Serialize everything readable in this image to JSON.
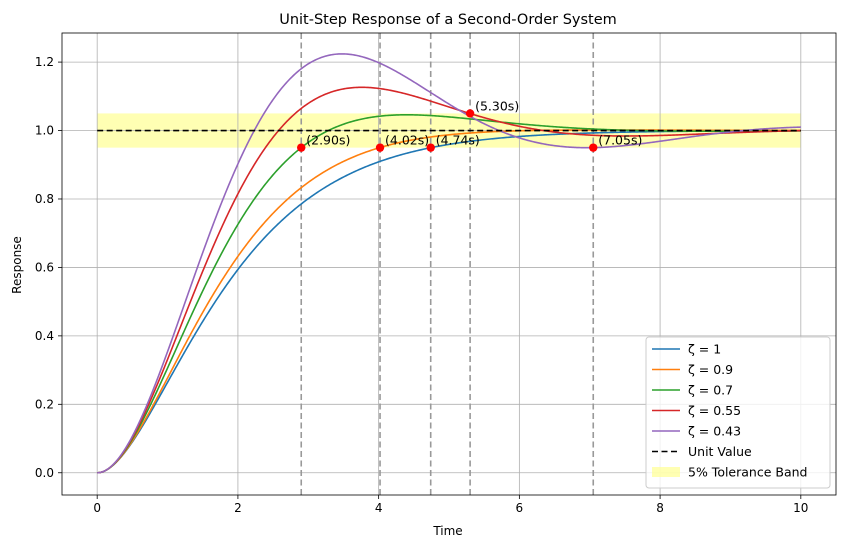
{
  "chart_data": {
    "type": "line",
    "title": "Unit-Step Response of a Second-Order System",
    "xlabel": "Time",
    "ylabel": "Response",
    "xlim": [
      -0.5,
      10.5
    ],
    "ylim": [
      -0.065,
      1.285
    ],
    "xticks": [
      0,
      2,
      4,
      6,
      8,
      10
    ],
    "xtick_labels": [
      "0",
      "2",
      "4",
      "6",
      "8",
      "10"
    ],
    "yticks": [
      0.0,
      0.2,
      0.4,
      0.6,
      0.8,
      1.0,
      1.2
    ],
    "ytick_labels": [
      "0.0",
      "0.2",
      "0.4",
      "0.6",
      "0.8",
      "1.0",
      "1.2"
    ],
    "grid": true,
    "legend_position": "lower-right",
    "natural_frequency": 1.0,
    "series": [
      {
        "name": "ζ = 1",
        "zeta": 1.0,
        "color": "#1f77b4"
      },
      {
        "name": "ζ = 0.9",
        "zeta": 0.9,
        "color": "#ff7f0e"
      },
      {
        "name": "ζ = 0.7",
        "zeta": 0.7,
        "color": "#2ca02c"
      },
      {
        "name": "ζ = 0.55",
        "zeta": 0.55,
        "color": "#d62728"
      },
      {
        "name": "ζ = 0.43",
        "zeta": 0.43,
        "color": "#9467bd"
      }
    ],
    "reference_line": {
      "name": "Unit Value",
      "y": 1.0,
      "color": "#000000"
    },
    "tolerance_band": {
      "name": "5% Tolerance Band",
      "lower": 0.95,
      "upper": 1.05,
      "color": "#ffff99"
    },
    "settling_markers": [
      {
        "x": 2.9,
        "y": 0.95,
        "label": "(2.90s)"
      },
      {
        "x": 4.02,
        "y": 0.95,
        "label": "(4.02s)"
      },
      {
        "x": 4.74,
        "y": 0.95,
        "label": "(4.74s)"
      },
      {
        "x": 5.3,
        "y": 1.05,
        "label": "(5.30s)"
      },
      {
        "x": 7.05,
        "y": 0.95,
        "label": "(7.05s)"
      }
    ],
    "marker_color": "#ff0000",
    "vline_color": "#999999"
  }
}
